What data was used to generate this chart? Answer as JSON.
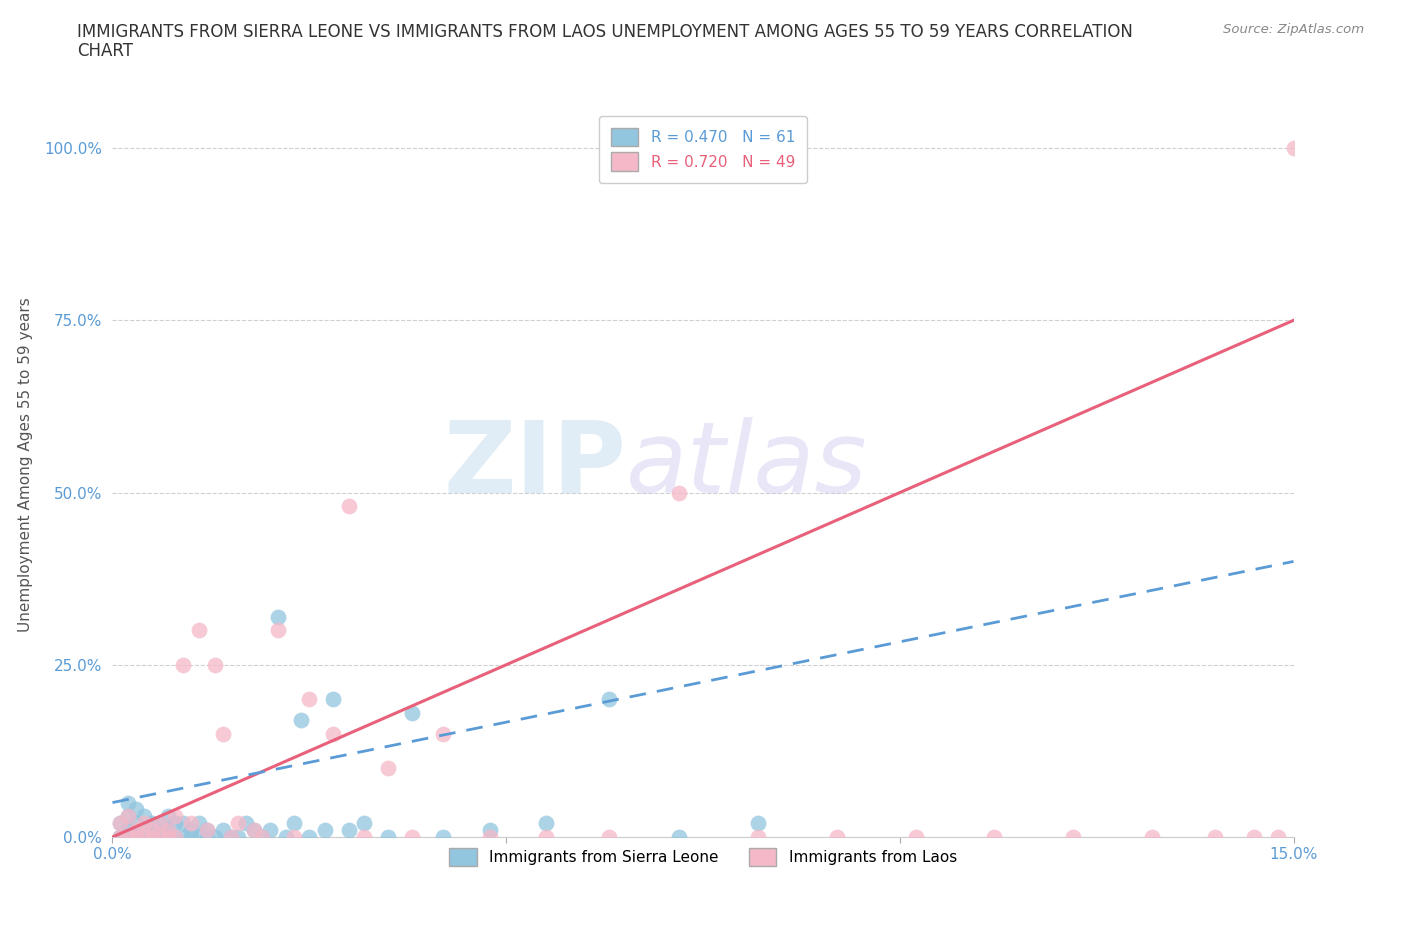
{
  "title_line1": "IMMIGRANTS FROM SIERRA LEONE VS IMMIGRANTS FROM LAOS UNEMPLOYMENT AMONG AGES 55 TO 59 YEARS CORRELATION",
  "title_line2": "CHART",
  "source_text": "Source: ZipAtlas.com",
  "ylabel": "Unemployment Among Ages 55 to 59 years",
  "xlim": [
    0.0,
    0.15
  ],
  "ylim": [
    0.0,
    1.08
  ],
  "xticks": [
    0.0,
    0.05,
    0.1,
    0.15
  ],
  "xticklabels": [
    "0.0%",
    "",
    "",
    "15.0%"
  ],
  "yticks": [
    0.0,
    0.25,
    0.5,
    0.75,
    1.0
  ],
  "yticklabels": [
    "0.0%",
    "25.0%",
    "50.0%",
    "75.0%",
    "100.0%"
  ],
  "sierra_leone_color": "#92C5DE",
  "laos_color": "#F4B8C8",
  "sierra_leone_line_color": "#5B9BD5",
  "laos_line_color": "#E8607A",
  "R_sierra_leone": 0.47,
  "N_sierra_leone": 61,
  "R_laos": 0.72,
  "N_laos": 49,
  "background_color": "#ffffff",
  "watermark_zip": "ZIP",
  "watermark_atlas": "atlas",
  "grid_color": "#d0d0d0",
  "title_fontsize": 12,
  "axis_label_fontsize": 11,
  "tick_fontsize": 11,
  "legend_fontsize": 11,
  "laos_line_x0": 0.0,
  "laos_line_y0": 0.0,
  "laos_line_x1": 0.15,
  "laos_line_y1": 0.75,
  "sl_line_x0": 0.0,
  "sl_line_y0": 0.05,
  "sl_line_x1": 0.15,
  "sl_line_y1": 0.4,
  "sierra_leone_x": [
    0.001,
    0.001,
    0.001,
    0.002,
    0.002,
    0.002,
    0.002,
    0.002,
    0.003,
    0.003,
    0.003,
    0.003,
    0.004,
    0.004,
    0.004,
    0.004,
    0.005,
    0.005,
    0.005,
    0.005,
    0.006,
    0.006,
    0.006,
    0.007,
    0.007,
    0.007,
    0.008,
    0.008,
    0.009,
    0.009,
    0.01,
    0.01,
    0.011,
    0.011,
    0.012,
    0.012,
    0.013,
    0.014,
    0.015,
    0.016,
    0.017,
    0.018,
    0.019,
    0.02,
    0.021,
    0.022,
    0.023,
    0.024,
    0.025,
    0.027,
    0.028,
    0.03,
    0.032,
    0.035,
    0.038,
    0.042,
    0.048,
    0.055,
    0.063,
    0.072,
    0.082
  ],
  "sierra_leone_y": [
    0.0,
    0.0,
    0.02,
    0.0,
    0.0,
    0.01,
    0.03,
    0.05,
    0.0,
    0.0,
    0.02,
    0.04,
    0.0,
    0.0,
    0.01,
    0.03,
    0.0,
    0.0,
    0.01,
    0.02,
    0.0,
    0.01,
    0.02,
    0.0,
    0.01,
    0.03,
    0.0,
    0.02,
    0.0,
    0.02,
    0.0,
    0.01,
    0.0,
    0.02,
    0.0,
    0.01,
    0.0,
    0.01,
    0.0,
    0.0,
    0.02,
    0.01,
    0.0,
    0.01,
    0.32,
    0.0,
    0.02,
    0.17,
    0.0,
    0.01,
    0.2,
    0.01,
    0.02,
    0.0,
    0.18,
    0.0,
    0.01,
    0.02,
    0.2,
    0.0,
    0.02
  ],
  "laos_x": [
    0.001,
    0.001,
    0.002,
    0.002,
    0.003,
    0.003,
    0.004,
    0.004,
    0.005,
    0.005,
    0.006,
    0.006,
    0.007,
    0.007,
    0.008,
    0.008,
    0.009,
    0.01,
    0.011,
    0.012,
    0.013,
    0.014,
    0.015,
    0.016,
    0.018,
    0.019,
    0.021,
    0.023,
    0.025,
    0.028,
    0.03,
    0.032,
    0.035,
    0.038,
    0.042,
    0.048,
    0.055,
    0.063,
    0.072,
    0.082,
    0.092,
    0.102,
    0.112,
    0.122,
    0.132,
    0.14,
    0.145,
    0.148,
    0.15
  ],
  "laos_y": [
    0.0,
    0.02,
    0.0,
    0.03,
    0.0,
    0.01,
    0.0,
    0.02,
    0.0,
    0.01,
    0.0,
    0.02,
    0.0,
    0.01,
    0.0,
    0.03,
    0.25,
    0.02,
    0.3,
    0.01,
    0.25,
    0.15,
    0.0,
    0.02,
    0.01,
    0.0,
    0.3,
    0.0,
    0.2,
    0.15,
    0.48,
    0.0,
    0.1,
    0.0,
    0.15,
    0.0,
    0.0,
    0.0,
    0.5,
    0.0,
    0.0,
    0.0,
    0.0,
    0.0,
    0.0,
    0.0,
    0.0,
    0.0,
    1.0
  ]
}
